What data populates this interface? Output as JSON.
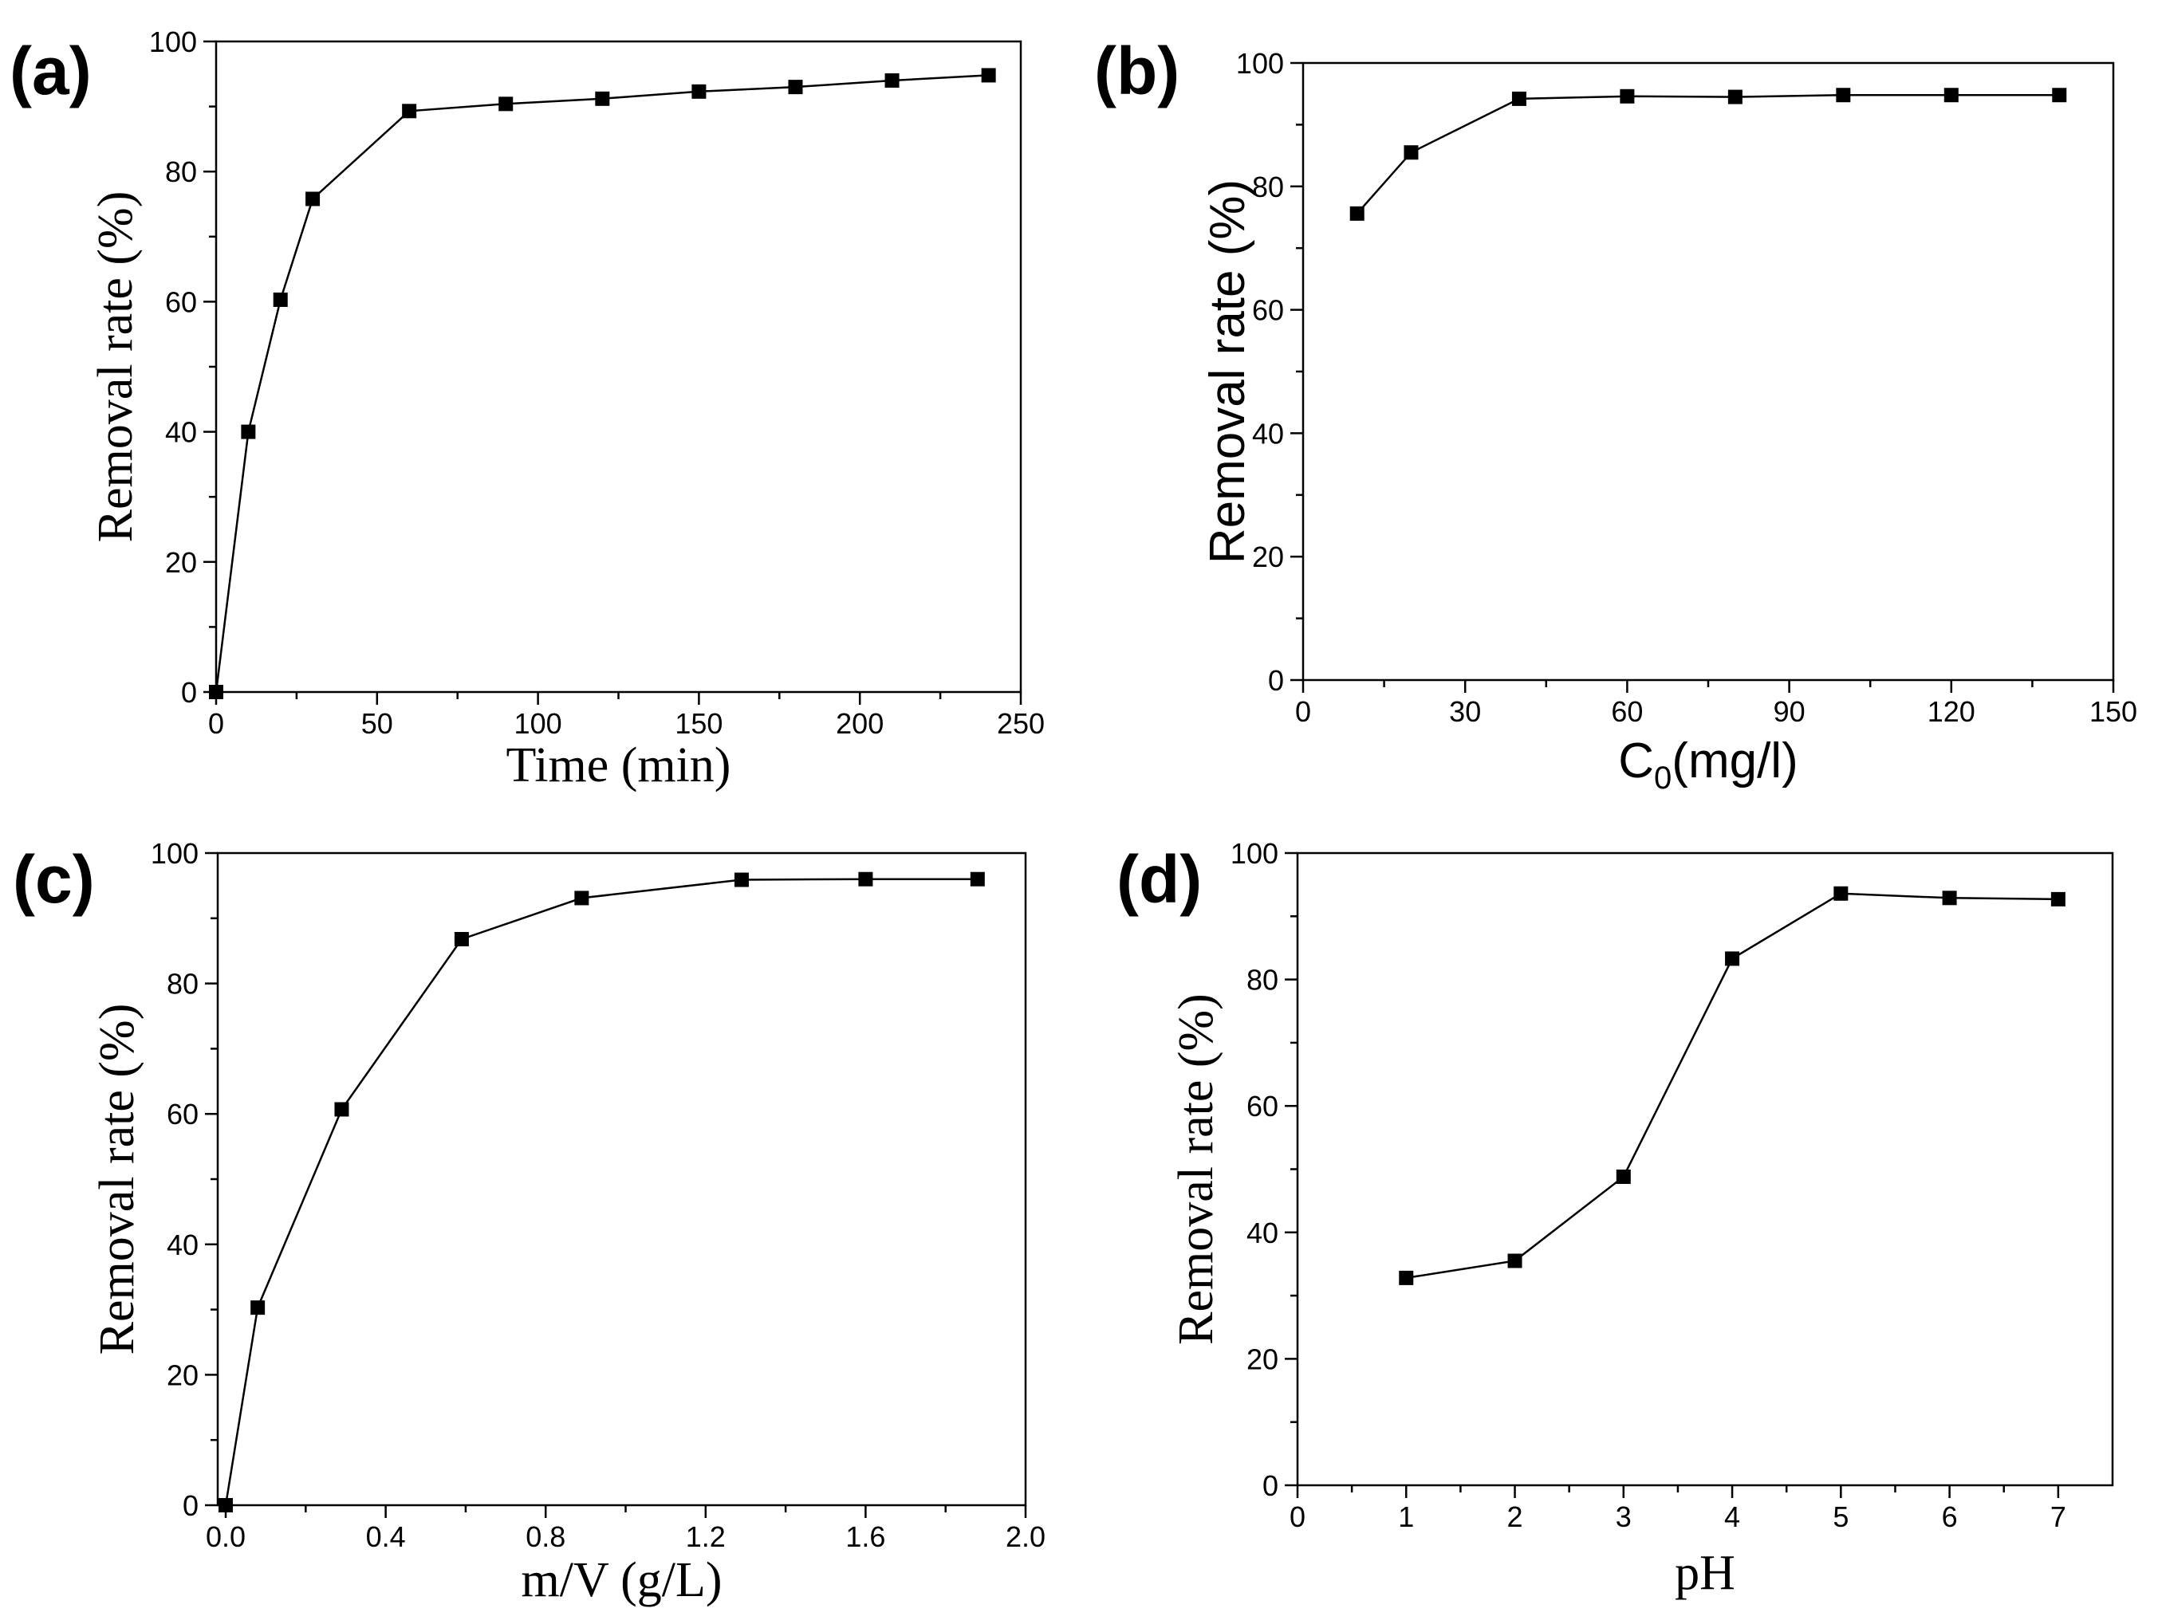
{
  "chart_data": [
    {
      "panel_label": "(a)",
      "type": "line",
      "title": "",
      "xlabel": "Time (min)",
      "ylabel": "Removal rate (%)",
      "font": "serif",
      "xlim": [
        0,
        250
      ],
      "ylim": [
        0,
        100
      ],
      "xticks": [
        0,
        50,
        100,
        150,
        200,
        250
      ],
      "xtick_labels": [
        "0",
        "50",
        "100",
        "150",
        "200",
        "250"
      ],
      "yticks": [
        0,
        20,
        40,
        60,
        80,
        100
      ],
      "ytick_labels": [
        "0",
        "20",
        "40",
        "60",
        "80",
        "100"
      ],
      "series": [
        {
          "name": "Removal rate",
          "x": [
            0,
            10,
            20,
            30,
            60,
            90,
            120,
            150,
            180,
            210,
            240
          ],
          "y": [
            0,
            40,
            60.3,
            75.8,
            89.3,
            90.4,
            91.2,
            92.3,
            93.0,
            94.0,
            94.8
          ]
        }
      ]
    },
    {
      "panel_label": "(b)",
      "type": "line",
      "title": "",
      "xlabel": "C",
      "xlabel_sub": "0",
      "xlabel_suffix": "(mg/l)",
      "ylabel": "Removal rate (%)",
      "font": "sans",
      "xlim": [
        0,
        150
      ],
      "ylim": [
        0,
        100
      ],
      "xticks": [
        0,
        30,
        60,
        90,
        120,
        150
      ],
      "xtick_labels": [
        "0",
        "30",
        "60",
        "90",
        "120",
        "150"
      ],
      "yticks": [
        0,
        20,
        40,
        60,
        80,
        100
      ],
      "ytick_labels": [
        "0",
        "20",
        "40",
        "60",
        "80",
        "100"
      ],
      "series": [
        {
          "name": "Removal rate",
          "x": [
            10,
            20,
            40,
            60,
            80,
            100,
            120,
            140
          ],
          "y": [
            75.6,
            85.5,
            94.2,
            94.6,
            94.5,
            94.8,
            94.8,
            94.8
          ]
        }
      ]
    },
    {
      "panel_label": "(c)",
      "type": "line",
      "title": "",
      "xlabel": "m/V (g/L)",
      "ylabel": "Removal rate (%)",
      "font": "serif",
      "xlim": [
        -0.02,
        2.0
      ],
      "ylim": [
        0,
        100
      ],
      "xticks": [
        0.0,
        0.4,
        0.8,
        1.2,
        1.6,
        2.0
      ],
      "xtick_labels": [
        "0.0",
        "0.4",
        "0.8",
        "1.2",
        "1.6",
        "2.0"
      ],
      "yticks": [
        0,
        20,
        40,
        60,
        80,
        100
      ],
      "ytick_labels": [
        "0",
        "20",
        "40",
        "60",
        "80",
        "100"
      ],
      "series": [
        {
          "name": "Removal rate",
          "x": [
            0.0,
            0.08,
            0.29,
            0.59,
            0.89,
            1.29,
            1.6,
            1.88
          ],
          "y": [
            0,
            30.3,
            60.7,
            86.8,
            93.1,
            95.9,
            96.0,
            96.0
          ]
        }
      ]
    },
    {
      "panel_label": "(d)",
      "type": "line",
      "title": "",
      "xlabel": "pH",
      "ylabel": "Removal rate (%)",
      "font": "serif",
      "xlim": [
        0,
        7.5
      ],
      "ylim": [
        0,
        100
      ],
      "xticks": [
        0,
        1,
        2,
        3,
        4,
        5,
        6,
        7
      ],
      "xtick_labels": [
        "0",
        "1",
        "2",
        "3",
        "4",
        "5",
        "6",
        "7"
      ],
      "yticks": [
        0,
        20,
        40,
        60,
        80,
        100
      ],
      "ytick_labels": [
        "0",
        "20",
        "40",
        "60",
        "80",
        "100"
      ],
      "series": [
        {
          "name": "Removal rate",
          "x": [
            1,
            2,
            3,
            4,
            5,
            6,
            7
          ],
          "y": [
            32.8,
            35.5,
            48.8,
            83.3,
            93.6,
            92.9,
            92.7
          ]
        }
      ]
    }
  ]
}
